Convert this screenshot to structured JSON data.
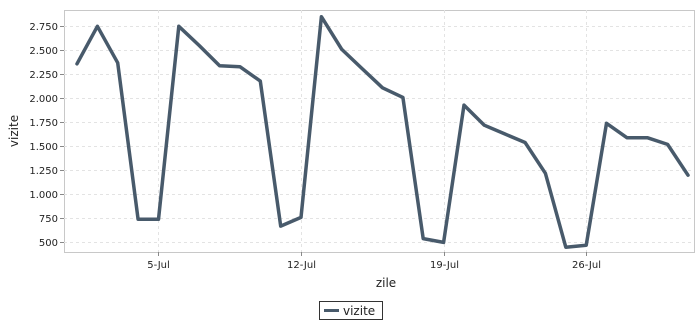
{
  "chart_data": {
    "type": "line",
    "xlabel": "zile",
    "ylabel": "vizite",
    "x": [
      "2026-07-01",
      "2026-07-02",
      "2026-07-03",
      "2026-07-04",
      "2026-07-05",
      "2026-07-06",
      "2026-07-07",
      "2026-07-08",
      "2026-07-09",
      "2026-07-10",
      "2026-07-11",
      "2026-07-12",
      "2026-07-13",
      "2026-07-14",
      "2026-07-15",
      "2026-07-16",
      "2026-07-17",
      "2026-07-18",
      "2026-07-19",
      "2026-07-20",
      "2026-07-21",
      "2026-07-22",
      "2026-07-23",
      "2026-07-24",
      "2026-07-25",
      "2026-07-26",
      "2026-07-27",
      "2026-07-28",
      "2026-07-29",
      "2026-07-30",
      "2026-07-31"
    ],
    "x_tick_labels": [
      "5-Jul",
      "12-Jul",
      "19-Jul",
      "26-Jul"
    ],
    "y_tick_labels": [
      "500",
      "750",
      "1.000",
      "1.250",
      "1.500",
      "1.750",
      "2.000",
      "2.250",
      "2.500",
      "2.750"
    ],
    "ylim": [
      400,
      2920
    ],
    "grid": true,
    "legend_position": "bottom-center",
    "series": [
      {
        "name": "vizite",
        "color": "#485a6b",
        "values": [
          2360,
          2750,
          2370,
          740,
          740,
          2750,
          2550,
          2340,
          2330,
          2180,
          670,
          760,
          2850,
          2510,
          2310,
          2110,
          2010,
          540,
          500,
          1930,
          1720,
          1630,
          1540,
          1220,
          450,
          470,
          1740,
          1590,
          1590,
          1520,
          1200
        ]
      }
    ]
  }
}
